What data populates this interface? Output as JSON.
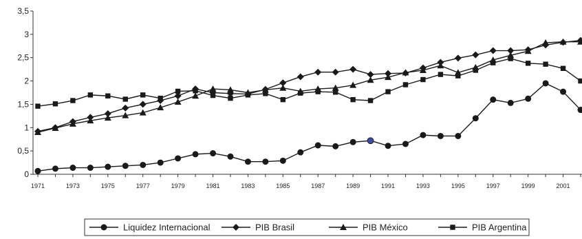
{
  "chart_data": {
    "type": "line",
    "title": "",
    "xlabel": "",
    "ylabel": "",
    "x": [
      1971,
      1972,
      1973,
      1974,
      1975,
      1976,
      1977,
      1978,
      1979,
      1980,
      1981,
      1982,
      1983,
      1984,
      1985,
      1986,
      1987,
      1988,
      1989,
      1990,
      1991,
      1992,
      1993,
      1994,
      1995,
      1996,
      1997,
      1998,
      1999,
      2000,
      2001,
      2002
    ],
    "x_tick_labels": [
      "1971",
      "1973",
      "1975",
      "1977",
      "1979",
      "1981",
      "1983",
      "1985",
      "1987",
      "1989",
      "1991",
      "1993",
      "1995",
      "1997",
      "1999",
      "2001"
    ],
    "y_tick_labels": [
      "0",
      "0,5",
      "1",
      "1,5",
      "2",
      "2,5",
      "3",
      "3,5"
    ],
    "ylim": [
      0,
      3.5
    ],
    "grid": false,
    "legend_position": "bottom",
    "series": [
      {
        "name": "Liquidez Internacional",
        "marker": "circle",
        "color": "#1a1a1a",
        "values": [
          0.07,
          0.12,
          0.14,
          0.14,
          0.16,
          0.18,
          0.2,
          0.25,
          0.34,
          0.43,
          0.45,
          0.38,
          0.27,
          0.27,
          0.29,
          0.47,
          0.62,
          0.6,
          0.69,
          0.72,
          0.61,
          0.65,
          0.84,
          0.82,
          0.82,
          1.2,
          1.6,
          1.53,
          1.62,
          1.95,
          1.77,
          1.38
        ],
        "highlight_index": 19,
        "highlight_color": "#3b4a9c"
      },
      {
        "name": "PIB Brasil",
        "marker": "diamond",
        "color": "#1a1a1a",
        "values": [
          0.92,
          1.0,
          1.13,
          1.22,
          1.3,
          1.42,
          1.5,
          1.58,
          1.68,
          1.83,
          1.75,
          1.73,
          1.72,
          1.82,
          1.96,
          2.09,
          2.19,
          2.19,
          2.25,
          2.14,
          2.16,
          2.17,
          2.28,
          2.4,
          2.49,
          2.56,
          2.65,
          2.65,
          2.67,
          2.77,
          2.83,
          2.87
        ]
      },
      {
        "name": "PIB México",
        "marker": "triangle",
        "color": "#1a1a1a",
        "values": [
          0.9,
          0.99,
          1.08,
          1.15,
          1.21,
          1.26,
          1.32,
          1.43,
          1.55,
          1.68,
          1.83,
          1.81,
          1.75,
          1.81,
          1.85,
          1.78,
          1.83,
          1.85,
          1.91,
          2.02,
          2.08,
          2.18,
          2.23,
          2.33,
          2.18,
          2.29,
          2.45,
          2.55,
          2.64,
          2.82,
          2.84,
          2.84
        ]
      },
      {
        "name": "PIB Argentina",
        "marker": "square",
        "color": "#1a1a1a",
        "values": [
          1.46,
          1.51,
          1.58,
          1.7,
          1.68,
          1.61,
          1.7,
          1.63,
          1.78,
          1.79,
          1.69,
          1.63,
          1.7,
          1.73,
          1.6,
          1.74,
          1.77,
          1.76,
          1.6,
          1.58,
          1.77,
          1.92,
          2.03,
          2.14,
          2.11,
          2.23,
          2.39,
          2.48,
          2.38,
          2.36,
          2.27,
          2.0
        ]
      }
    ]
  }
}
